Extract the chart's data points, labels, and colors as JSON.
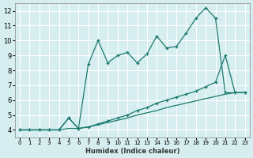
{
  "background_color": "#d6eef0",
  "grid_color": "#ffffff",
  "line_color": "#1a7a6e",
  "xlabel": "Humidex (Indice chaleur)",
  "xlim": [
    -0.5,
    23.5
  ],
  "ylim": [
    3.5,
    12.5
  ],
  "yticks": [
    4,
    5,
    6,
    7,
    8,
    9,
    10,
    11,
    12
  ],
  "xticks": [
    0,
    1,
    2,
    3,
    4,
    5,
    6,
    7,
    8,
    9,
    10,
    11,
    12,
    13,
    14,
    15,
    16,
    17,
    18,
    19,
    20,
    21,
    22,
    23
  ],
  "series1_x": [
    0,
    1,
    2,
    3,
    4,
    5,
    6,
    7,
    8,
    9,
    10,
    11,
    12,
    13,
    14,
    15,
    16,
    17,
    18,
    19,
    20,
    21,
    22,
    23
  ],
  "series1_y": [
    4.0,
    4.0,
    4.0,
    4.0,
    4.0,
    4.8,
    4.1,
    8.4,
    10.0,
    8.5,
    9.0,
    9.2,
    8.5,
    9.1,
    10.3,
    9.5,
    9.6,
    10.5,
    11.5,
    12.2,
    11.5,
    6.5,
    6.5,
    6.5
  ],
  "series2_x": [
    0,
    1,
    2,
    3,
    4,
    5,
    6,
    7,
    8,
    9,
    10,
    11,
    12,
    13,
    14,
    15,
    16,
    17,
    18,
    19,
    20,
    21,
    22,
    23
  ],
  "series2_y": [
    4.0,
    4.0,
    4.0,
    4.0,
    4.0,
    4.8,
    4.1,
    4.2,
    4.4,
    4.6,
    4.8,
    5.0,
    5.3,
    5.5,
    5.8,
    6.0,
    6.2,
    6.4,
    6.6,
    6.9,
    7.2,
    9.0,
    6.5,
    6.5
  ],
  "series3_x": [
    0,
    1,
    2,
    3,
    4,
    5,
    6,
    7,
    8,
    9,
    10,
    11,
    12,
    13,
    14,
    15,
    16,
    17,
    18,
    19,
    20,
    21,
    22,
    23
  ],
  "series3_y": [
    4.0,
    4.0,
    4.0,
    4.0,
    4.0,
    4.1,
    4.1,
    4.2,
    4.35,
    4.5,
    4.65,
    4.8,
    5.0,
    5.15,
    5.3,
    5.5,
    5.65,
    5.8,
    5.95,
    6.1,
    6.25,
    6.4,
    6.5,
    6.5
  ]
}
